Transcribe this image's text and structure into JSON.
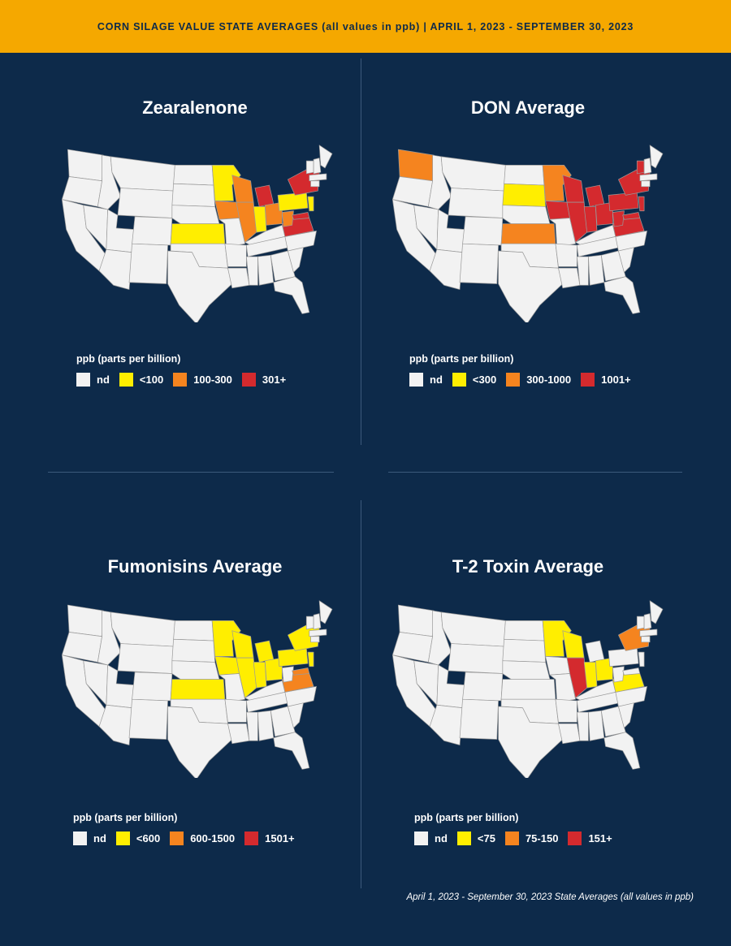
{
  "header": {
    "title": "CORN SILAGE VALUE STATE AVERAGES (all values in ppb) | APRIL 1, 2023 - SEPTEMBER 30, 2023"
  },
  "colors": {
    "background": "#0d2a4a",
    "banner": "#f5a800",
    "nd": "#f2f2f2",
    "level1": "#ffee00",
    "level2": "#f5841f",
    "level3": "#d42a2e",
    "borders": "#9a9a9a"
  },
  "legend_title": "ppb (parts per billion)",
  "panels": [
    {
      "title": "Zearalenone",
      "legend": [
        "nd",
        "<100",
        "100-300",
        "301+"
      ],
      "states": {
        "MN": 1,
        "KS": 1,
        "IN": 1,
        "PA": 1,
        "NJ": 1,
        "WI": 2,
        "IA": 2,
        "IL": 2,
        "OH": 2,
        "WV": 2,
        "MI": 3,
        "NY": 3,
        "VA": 3,
        "MD": 3
      }
    },
    {
      "title": "DON Average",
      "legend": [
        "nd",
        "<300",
        "300-1000",
        "1001+"
      ],
      "states": {
        "SD": 1,
        "WA": 2,
        "MN": 2,
        "KS": 2,
        "WI": 3,
        "IA": 3,
        "IL": 3,
        "MI": 3,
        "IN": 3,
        "OH": 3,
        "PA": 3,
        "NY": 3,
        "WV": 3,
        "VA": 3,
        "MD": 3,
        "NJ": 3,
        "VT": 3
      }
    },
    {
      "title": "Fumonisins Average",
      "legend": [
        "nd",
        "<600",
        "600-1500",
        "1501+"
      ],
      "states": {
        "MN": 1,
        "WI": 1,
        "IA": 1,
        "IL": 1,
        "IN": 1,
        "OH": 1,
        "MI": 1,
        "PA": 1,
        "NY": 1,
        "KS": 1,
        "NJ": 1,
        "VA": 2,
        "MD": 2
      }
    },
    {
      "title": "T-2 Toxin Average",
      "legend": [
        "nd",
        "<75",
        "75-150",
        "151+"
      ],
      "states": {
        "MN": 1,
        "WI": 1,
        "IN": 1,
        "OH": 1,
        "VA": 1,
        "NY": 2,
        "IL": 3
      }
    }
  ],
  "footnote": "April 1, 2023 - September 30, 2023 State Averages (all values in ppb)"
}
